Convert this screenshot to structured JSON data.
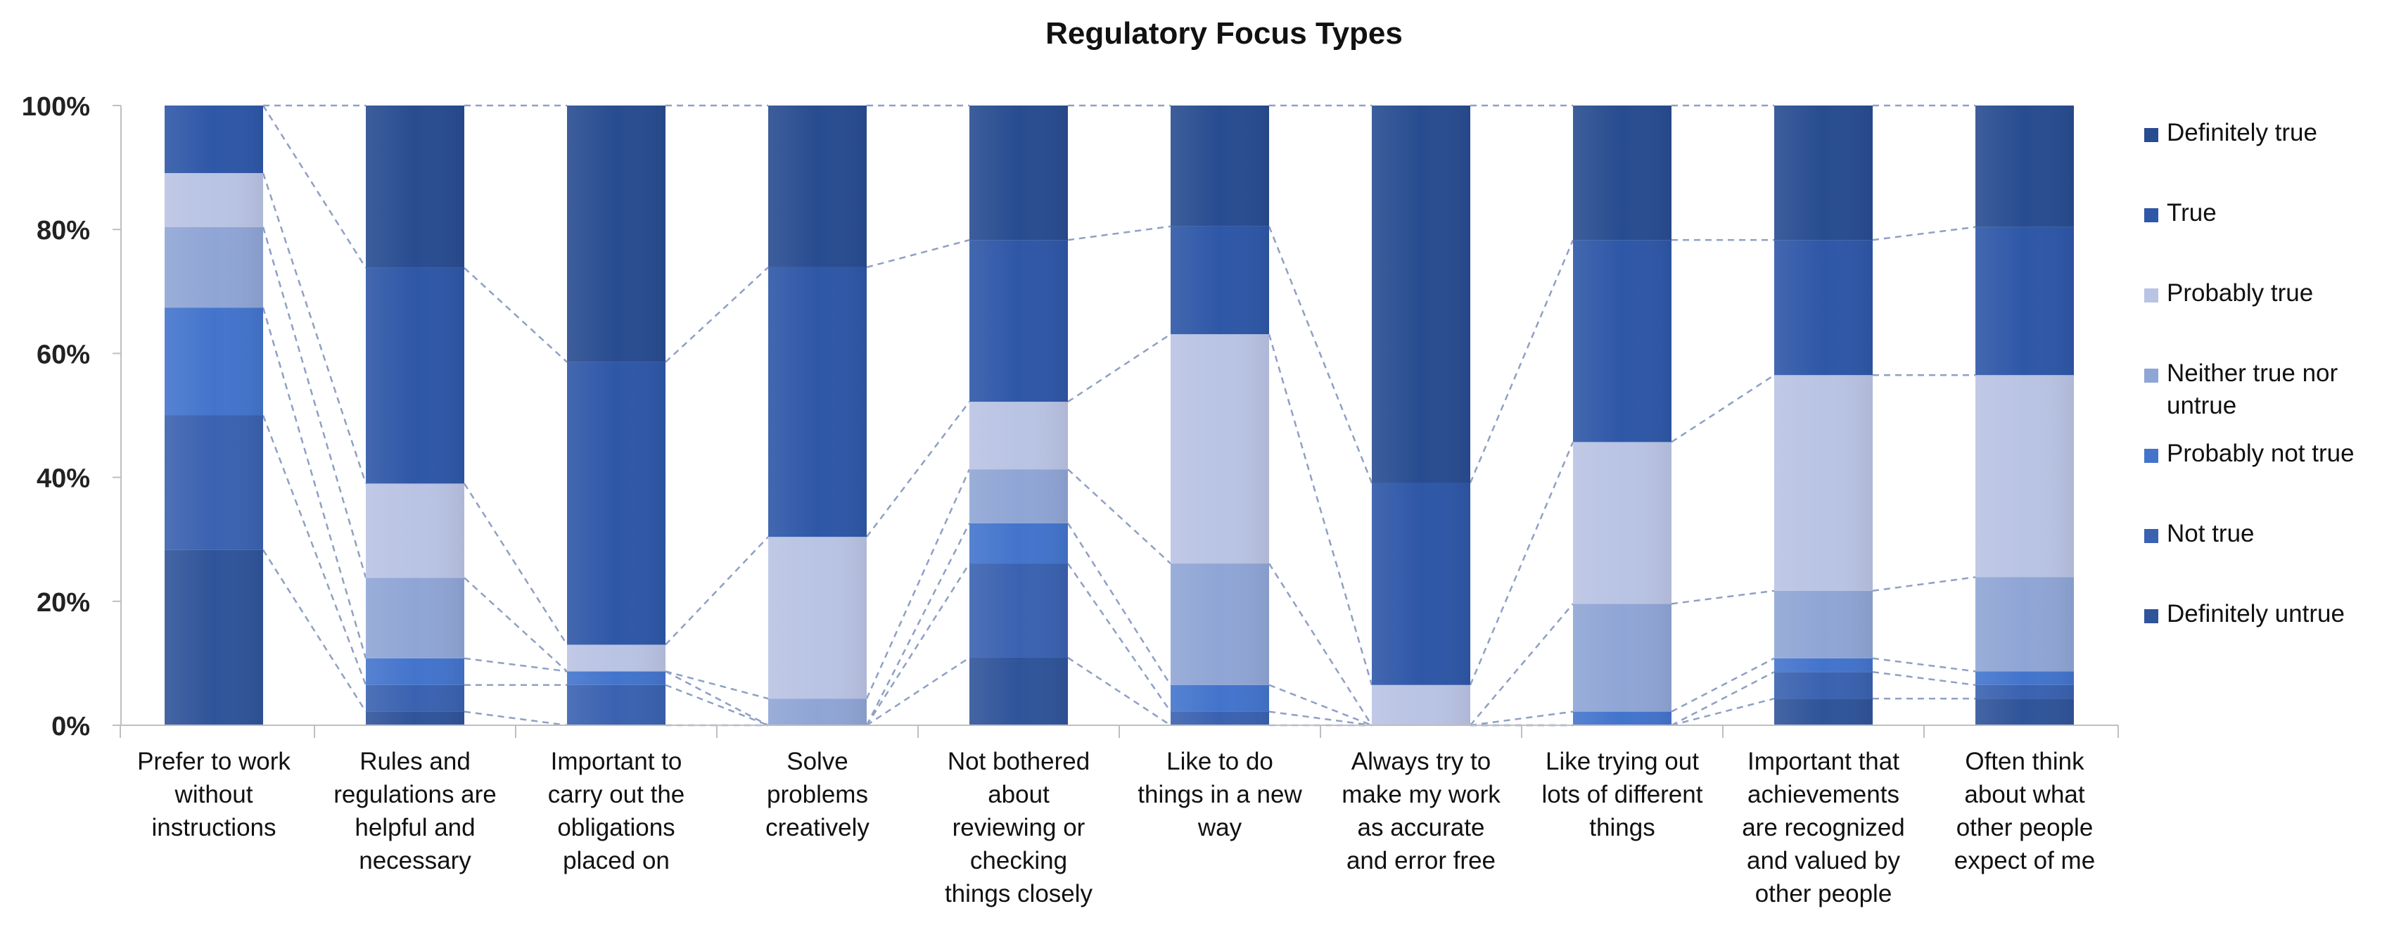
{
  "chart_data": {
    "type": "bar",
    "stacked": true,
    "orientation": "vertical",
    "title": "Regulatory Focus Types",
    "xlabel": "",
    "ylabel": "",
    "ylim": [
      0,
      100
    ],
    "y_ticks": [
      "0%",
      "20%",
      "40%",
      "60%",
      "80%",
      "100%"
    ],
    "y_tick_values": [
      0,
      20,
      40,
      60,
      80,
      100
    ],
    "grid": false,
    "series_connector_lines": true,
    "legend_position": "right",
    "categories": [
      [
        "Prefer to work",
        "without",
        "instructions"
      ],
      [
        "Rules and",
        "regulations are",
        "helpful and",
        "necessary"
      ],
      [
        "Important to",
        "carry out the",
        "obligations",
        "placed on"
      ],
      [
        "Solve",
        "problems",
        "creatively"
      ],
      [
        "Not bothered",
        "about",
        "reviewing or",
        "checking",
        "things closely"
      ],
      [
        "Like to do",
        "things in a new",
        "way"
      ],
      [
        "Always try to",
        "make my work",
        "as accurate",
        "and error free"
      ],
      [
        "Like trying out",
        "lots of different",
        "things"
      ],
      [
        "Important that",
        "achievements",
        "are recognized",
        "and valued by",
        "other people"
      ],
      [
        "Often think",
        "about what",
        "other people",
        "expect of me"
      ]
    ],
    "series": [
      {
        "name": "Definitely untrue",
        "color": "#30549a",
        "values": [
          28.3,
          2.2,
          0,
          0,
          10.9,
          0,
          0,
          0,
          4.3,
          4.3
        ]
      },
      {
        "name": "Not true",
        "color": "#3a62b0",
        "values": [
          21.7,
          4.3,
          6.5,
          0,
          15.2,
          2.2,
          0,
          0,
          4.3,
          2.2
        ]
      },
      {
        "name": "Probably not true",
        "color": "#4374cc",
        "values": [
          17.4,
          4.3,
          2.2,
          0,
          6.5,
          4.3,
          0,
          2.2,
          2.2,
          2.2
        ]
      },
      {
        "name": "Neither true nor untrue",
        "color": "#8fa5d5",
        "values": [
          13.0,
          13.0,
          0,
          4.3,
          8.7,
          19.6,
          0,
          17.4,
          10.9,
          15.2
        ]
      },
      {
        "name": "Probably true",
        "color": "#b9c3e3",
        "values": [
          8.7,
          15.2,
          4.3,
          26.1,
          10.9,
          37.0,
          6.5,
          26.1,
          34.8,
          32.6
        ]
      },
      {
        "name": "True",
        "color": "#2e57a7",
        "values": [
          10.9,
          34.8,
          45.6,
          43.5,
          26.1,
          17.4,
          32.6,
          32.6,
          21.8,
          23.9
        ]
      },
      {
        "name": "Definitely true",
        "color": "#284c90",
        "values": [
          0,
          26.2,
          41.4,
          26.1,
          21.7,
          19.5,
          60.9,
          21.7,
          21.7,
          19.6
        ]
      }
    ],
    "legend_order": [
      "Definitely true",
      "True",
      "Probably true",
      "Neither true nor untrue",
      "Probably not true",
      "Not true",
      "Definitely untrue"
    ],
    "legend_labels": {
      "Definitely true": [
        "Definitely true"
      ],
      "True": [
        "True"
      ],
      "Probably true": [
        "Probably true"
      ],
      "Neither true nor untrue": [
        "Neither true nor",
        "untrue"
      ],
      "Probably not true": [
        "Probably not true"
      ],
      "Not true": [
        "Not true"
      ],
      "Definitely untrue": [
        "Definitely untrue"
      ]
    }
  }
}
